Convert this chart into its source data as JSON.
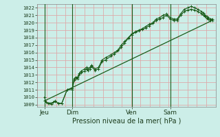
{
  "title": "Pression niveau de la mer( hPa )",
  "ylabel_ticks": [
    1009,
    1010,
    1011,
    1012,
    1013,
    1014,
    1015,
    1016,
    1017,
    1018,
    1019,
    1020,
    1021,
    1022
  ],
  "ylim": [
    1008.7,
    1022.5
  ],
  "xlim": [
    0,
    1.0
  ],
  "bg_color": "#cceee8",
  "grid_color": "#ddaaaa",
  "line_color": "#1a5c1a",
  "xtick_labels": [
    "Jeu",
    "Dim",
    "Ven",
    "Sam"
  ],
  "xtick_positions": [
    0.04,
    0.2,
    0.54,
    0.76
  ],
  "vline_positions": [
    0.04,
    0.2,
    0.54,
    0.76
  ],
  "line1_x": [
    0.04,
    0.05,
    0.07,
    0.09,
    0.1,
    0.12,
    0.14,
    0.17,
    0.2,
    0.21,
    0.22,
    0.23,
    0.24,
    0.25,
    0.27,
    0.28,
    0.29,
    0.3,
    0.31,
    0.33,
    0.35,
    0.37,
    0.39,
    0.42,
    0.44,
    0.46,
    0.48,
    0.5,
    0.52,
    0.54,
    0.56,
    0.58,
    0.6,
    0.62,
    0.64,
    0.66,
    0.68,
    0.7,
    0.72,
    0.74,
    0.76,
    0.78,
    0.8,
    0.82,
    0.84,
    0.86,
    0.88,
    0.9,
    0.92,
    0.94,
    0.95,
    0.96,
    0.97,
    0.98,
    0.99,
    1.0
  ],
  "line1_y": [
    1010.0,
    1009.3,
    1009.2,
    1009.3,
    1009.5,
    1009.2,
    1009.2,
    1011.0,
    1011.2,
    1012.5,
    1012.7,
    1012.7,
    1013.2,
    1013.5,
    1013.8,
    1014.0,
    1013.8,
    1014.0,
    1014.3,
    1013.8,
    1014.0,
    1015.0,
    1015.3,
    1015.7,
    1016.0,
    1016.3,
    1017.0,
    1017.5,
    1018.0,
    1018.5,
    1018.8,
    1019.0,
    1019.2,
    1019.5,
    1019.8,
    1020.0,
    1020.5,
    1020.7,
    1021.0,
    1021.2,
    1020.7,
    1020.5,
    1020.5,
    1021.2,
    1021.8,
    1022.0,
    1022.2,
    1022.0,
    1021.8,
    1021.5,
    1021.3,
    1021.0,
    1020.8,
    1020.7,
    1020.5,
    1020.5
  ],
  "line2_x": [
    0.04,
    0.06,
    0.08,
    0.1,
    0.12,
    0.14,
    0.17,
    0.2,
    0.21,
    0.22,
    0.23,
    0.24,
    0.25,
    0.27,
    0.28,
    0.29,
    0.3,
    0.31,
    0.33,
    0.35,
    0.37,
    0.39,
    0.42,
    0.44,
    0.46,
    0.48,
    0.5,
    0.52,
    0.54,
    0.56,
    0.58,
    0.6,
    0.62,
    0.64,
    0.66,
    0.68,
    0.7,
    0.72,
    0.74,
    0.76,
    0.78,
    0.8,
    0.82,
    0.84,
    0.86,
    0.88,
    0.9,
    0.92,
    0.94,
    0.95,
    0.96,
    0.97,
    0.98,
    0.99,
    1.0
  ],
  "line2_y": [
    1009.5,
    1009.2,
    1009.1,
    1009.4,
    1009.2,
    1009.2,
    1011.0,
    1011.0,
    1012.3,
    1012.5,
    1012.5,
    1013.0,
    1013.3,
    1013.5,
    1013.8,
    1013.6,
    1013.8,
    1014.1,
    1013.6,
    1013.8,
    1014.8,
    1015.0,
    1015.5,
    1015.8,
    1016.2,
    1016.7,
    1017.3,
    1017.9,
    1018.4,
    1018.7,
    1018.9,
    1019.1,
    1019.3,
    1019.6,
    1019.9,
    1020.3,
    1020.5,
    1020.7,
    1021.0,
    1020.5,
    1020.3,
    1020.3,
    1021.0,
    1021.5,
    1021.7,
    1021.8,
    1021.7,
    1021.5,
    1021.2,
    1021.0,
    1020.8,
    1020.6,
    1020.5,
    1020.3,
    1020.3
  ],
  "trend_x": [
    0.04,
    1.0
  ],
  "trend_y": [
    1009.5,
    1020.3
  ],
  "n_vgrid": 20
}
